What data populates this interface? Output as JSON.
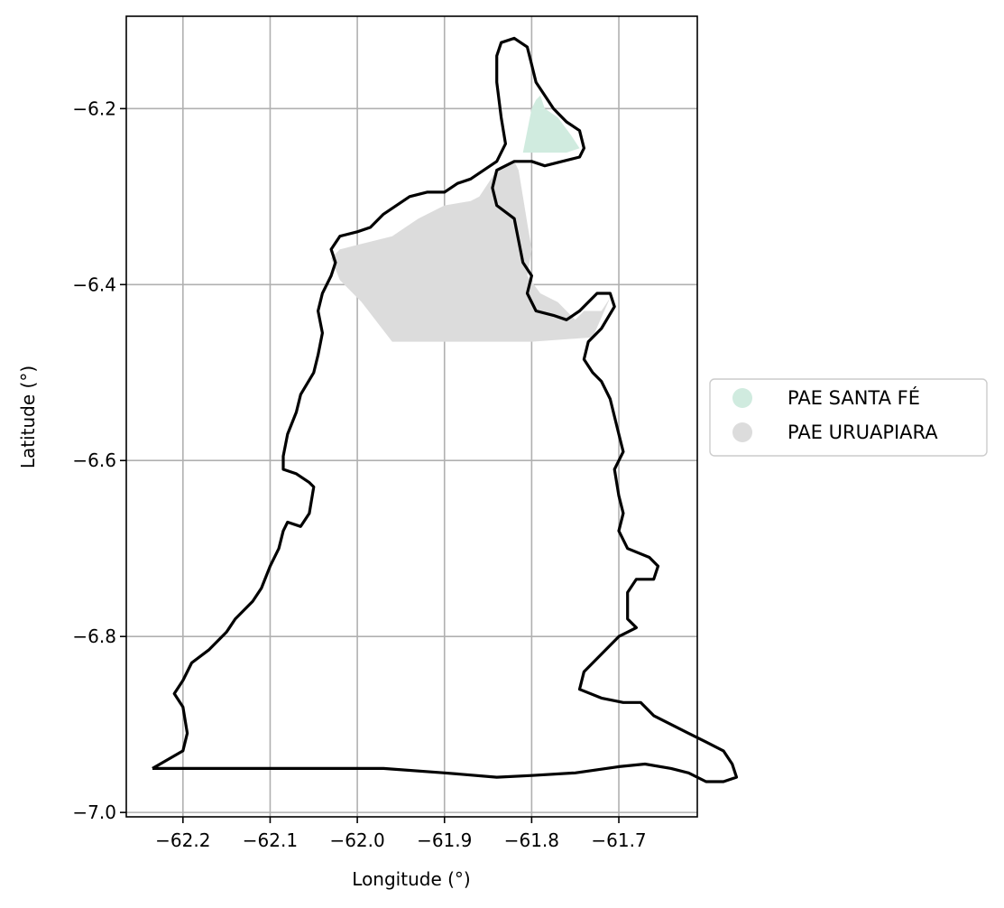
{
  "chart_data": {
    "type": "map",
    "xlabel": "Longitude (°)",
    "ylabel": "Latitude (°)",
    "xlim": [
      -62.265,
      -61.61
    ],
    "ylim": [
      -7.005,
      -6.095
    ],
    "xticks": [
      -62.2,
      -62.1,
      -62.0,
      -61.9,
      -61.8,
      -61.7
    ],
    "xtick_labels": [
      "−62.2",
      "−62.1",
      "−62.0",
      "−61.9",
      "−61.8",
      "−61.7"
    ],
    "yticks": [
      -6.2,
      -6.4,
      -6.6,
      -6.8,
      -7.0
    ],
    "ytick_labels": [
      "−6.2",
      "−6.4",
      "−6.6",
      "−6.8",
      "−7.0"
    ],
    "grid": true,
    "legend_position": "right",
    "legend": [
      {
        "label": "PAE SANTA FÉ",
        "color": "#d0ebdf"
      },
      {
        "label": "PAE URUAPIARA",
        "color": "#dcdcdc"
      }
    ],
    "regions": [
      {
        "name": "PAE SANTA FÉ",
        "color": "#d0ebdf",
        "coords": [
          [
            -61.81,
            -6.25
          ],
          [
            -61.8,
            -6.2
          ],
          [
            -61.795,
            -6.19
          ],
          [
            -61.79,
            -6.185
          ],
          [
            -61.785,
            -6.2
          ],
          [
            -61.77,
            -6.21
          ],
          [
            -61.755,
            -6.23
          ],
          [
            -61.745,
            -6.245
          ],
          [
            -61.76,
            -6.25
          ],
          [
            -61.79,
            -6.25
          ]
        ]
      },
      {
        "name": "PAE URUAPIARA",
        "color": "#dcdcdc",
        "coords": [
          [
            -62.02,
            -6.36
          ],
          [
            -62.0,
            -6.355
          ],
          [
            -61.96,
            -6.345
          ],
          [
            -61.93,
            -6.325
          ],
          [
            -61.9,
            -6.31
          ],
          [
            -61.87,
            -6.305
          ],
          [
            -61.86,
            -6.3
          ],
          [
            -61.84,
            -6.27
          ],
          [
            -61.83,
            -6.265
          ],
          [
            -61.82,
            -6.26
          ],
          [
            -61.815,
            -6.27
          ],
          [
            -61.81,
            -6.3
          ],
          [
            -61.805,
            -6.33
          ],
          [
            -61.8,
            -6.36
          ],
          [
            -61.805,
            -6.39
          ],
          [
            -61.79,
            -6.41
          ],
          [
            -61.77,
            -6.42
          ],
          [
            -61.75,
            -6.44
          ],
          [
            -61.74,
            -6.43
          ],
          [
            -61.72,
            -6.43
          ],
          [
            -61.71,
            -6.415
          ],
          [
            -61.73,
            -6.46
          ],
          [
            -61.8,
            -6.465
          ],
          [
            -61.96,
            -6.465
          ],
          [
            -61.995,
            -6.42
          ],
          [
            -62.02,
            -6.395
          ],
          [
            -62.03,
            -6.37
          ]
        ]
      }
    ],
    "boundary": [
      [
        -62.235,
        -6.95
      ],
      [
        -62.2,
        -6.93
      ],
      [
        -62.195,
        -6.91
      ],
      [
        -62.2,
        -6.88
      ],
      [
        -62.21,
        -6.865
      ],
      [
        -62.2,
        -6.85
      ],
      [
        -62.19,
        -6.83
      ],
      [
        -62.17,
        -6.815
      ],
      [
        -62.15,
        -6.795
      ],
      [
        -62.14,
        -6.78
      ],
      [
        -62.12,
        -6.76
      ],
      [
        -62.11,
        -6.745
      ],
      [
        -62.1,
        -6.72
      ],
      [
        -62.09,
        -6.7
      ],
      [
        -62.085,
        -6.68
      ],
      [
        -62.08,
        -6.67
      ],
      [
        -62.065,
        -6.675
      ],
      [
        -62.055,
        -6.66
      ],
      [
        -62.05,
        -6.63
      ],
      [
        -62.055,
        -6.625
      ],
      [
        -62.07,
        -6.615
      ],
      [
        -62.085,
        -6.61
      ],
      [
        -62.085,
        -6.595
      ],
      [
        -62.08,
        -6.57
      ],
      [
        -62.07,
        -6.545
      ],
      [
        -62.065,
        -6.525
      ],
      [
        -62.05,
        -6.5
      ],
      [
        -62.045,
        -6.48
      ],
      [
        -62.04,
        -6.455
      ],
      [
        -62.045,
        -6.43
      ],
      [
        -62.04,
        -6.41
      ],
      [
        -62.03,
        -6.39
      ],
      [
        -62.025,
        -6.375
      ],
      [
        -62.03,
        -6.36
      ],
      [
        -62.02,
        -6.345
      ],
      [
        -62.0,
        -6.34
      ],
      [
        -61.985,
        -6.335
      ],
      [
        -61.97,
        -6.32
      ],
      [
        -61.955,
        -6.31
      ],
      [
        -61.94,
        -6.3
      ],
      [
        -61.92,
        -6.295
      ],
      [
        -61.9,
        -6.295
      ],
      [
        -61.885,
        -6.285
      ],
      [
        -61.87,
        -6.28
      ],
      [
        -61.855,
        -6.27
      ],
      [
        -61.84,
        -6.26
      ],
      [
        -61.83,
        -6.24
      ],
      [
        -61.835,
        -6.21
      ],
      [
        -61.84,
        -6.17
      ],
      [
        -61.84,
        -6.14
      ],
      [
        -61.835,
        -6.125
      ],
      [
        -61.82,
        -6.12
      ],
      [
        -61.805,
        -6.13
      ],
      [
        -61.8,
        -6.15
      ],
      [
        -61.795,
        -6.17
      ],
      [
        -61.785,
        -6.185
      ],
      [
        -61.775,
        -6.2
      ],
      [
        -61.76,
        -6.215
      ],
      [
        -61.745,
        -6.225
      ],
      [
        -61.74,
        -6.245
      ],
      [
        -61.745,
        -6.255
      ],
      [
        -61.765,
        -6.26
      ],
      [
        -61.785,
        -6.265
      ],
      [
        -61.8,
        -6.26
      ],
      [
        -61.82,
        -6.26
      ],
      [
        -61.84,
        -6.27
      ],
      [
        -61.845,
        -6.29
      ],
      [
        -61.84,
        -6.31
      ],
      [
        -61.82,
        -6.325
      ],
      [
        -61.815,
        -6.35
      ],
      [
        -61.81,
        -6.375
      ],
      [
        -61.8,
        -6.39
      ],
      [
        -61.805,
        -6.41
      ],
      [
        -61.795,
        -6.43
      ],
      [
        -61.775,
        -6.435
      ],
      [
        -61.76,
        -6.44
      ],
      [
        -61.745,
        -6.43
      ],
      [
        -61.725,
        -6.41
      ],
      [
        -61.71,
        -6.41
      ],
      [
        -61.705,
        -6.425
      ],
      [
        -61.72,
        -6.45
      ],
      [
        -61.735,
        -6.465
      ],
      [
        -61.74,
        -6.485
      ],
      [
        -61.73,
        -6.5
      ],
      [
        -61.72,
        -6.51
      ],
      [
        -61.71,
        -6.53
      ],
      [
        -61.705,
        -6.55
      ],
      [
        -61.7,
        -6.57
      ],
      [
        -61.695,
        -6.59
      ],
      [
        -61.705,
        -6.61
      ],
      [
        -61.7,
        -6.64
      ],
      [
        -61.695,
        -6.66
      ],
      [
        -61.7,
        -6.68
      ],
      [
        -61.69,
        -6.7
      ],
      [
        -61.665,
        -6.71
      ],
      [
        -61.655,
        -6.72
      ],
      [
        -61.66,
        -6.735
      ],
      [
        -61.68,
        -6.735
      ],
      [
        -61.69,
        -6.75
      ],
      [
        -61.69,
        -6.78
      ],
      [
        -61.68,
        -6.79
      ],
      [
        -61.7,
        -6.8
      ],
      [
        -61.72,
        -6.82
      ],
      [
        -61.74,
        -6.84
      ],
      [
        -61.745,
        -6.86
      ],
      [
        -61.72,
        -6.87
      ],
      [
        -61.695,
        -6.875
      ],
      [
        -61.675,
        -6.875
      ],
      [
        -61.66,
        -6.89
      ],
      [
        -61.64,
        -6.9
      ],
      [
        -61.62,
        -6.91
      ],
      [
        -61.6,
        -6.92
      ],
      [
        -61.58,
        -6.93
      ],
      [
        -61.57,
        -6.945
      ],
      [
        -61.565,
        -6.96
      ],
      [
        -61.58,
        -6.965
      ],
      [
        -61.6,
        -6.965
      ],
      [
        -61.62,
        -6.955
      ],
      [
        -61.64,
        -6.95
      ],
      [
        -61.67,
        -6.945
      ],
      [
        -61.7,
        -6.948
      ],
      [
        -61.75,
        -6.955
      ],
      [
        -61.8,
        -6.958
      ],
      [
        -61.84,
        -6.96
      ],
      [
        -61.9,
        -6.955
      ],
      [
        -61.97,
        -6.95
      ],
      [
        -62.1,
        -6.95
      ],
      [
        -62.235,
        -6.95
      ]
    ]
  }
}
